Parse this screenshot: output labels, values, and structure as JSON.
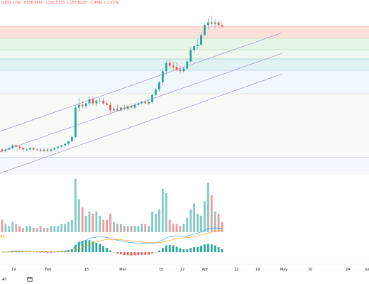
{
  "ohlc": {
    "open": "O156.2742",
    "high": "H158.8400",
    "low": "L155.5735",
    "close": "C155.8226",
    "change": "-2.4541 (-1.55%)",
    "color": "#ef5350"
  },
  "macd_label": "MA",
  "range_tab": "All",
  "colors": {
    "up": "#26a69a",
    "down": "#ef5350",
    "up_volume": "#80cbc4",
    "down_volume": "#ef9a9a",
    "channel": "#9c7cc9",
    "macd_line": "#2196f3",
    "signal_line": "#ff9800"
  },
  "chart_data": {
    "type": "candlestick",
    "x_tick_labels": [
      "19",
      "Feb",
      "15",
      "Mar",
      "15",
      "22",
      "Apr",
      "12",
      "19",
      "May",
      "10",
      "24",
      "Jun"
    ],
    "candles": [
      {
        "o": 68,
        "h": 69,
        "l": 66,
        "c": 67
      },
      {
        "o": 67,
        "h": 69,
        "l": 66,
        "c": 68
      },
      {
        "o": 68,
        "h": 70,
        "l": 67,
        "c": 69
      },
      {
        "o": 69,
        "h": 72,
        "l": 68,
        "c": 71
      },
      {
        "o": 71,
        "h": 72,
        "l": 69,
        "c": 70
      },
      {
        "o": 70,
        "h": 71,
        "l": 68,
        "c": 69
      },
      {
        "o": 69,
        "h": 70,
        "l": 67,
        "c": 68
      },
      {
        "o": 68,
        "h": 69,
        "l": 67,
        "c": 68
      },
      {
        "o": 68,
        "h": 70,
        "l": 67,
        "c": 69
      },
      {
        "o": 69,
        "h": 70,
        "l": 67,
        "c": 68
      },
      {
        "o": 68,
        "h": 69,
        "l": 67,
        "c": 68
      },
      {
        "o": 68,
        "h": 69,
        "l": 66,
        "c": 67
      },
      {
        "o": 67,
        "h": 69,
        "l": 66,
        "c": 68
      },
      {
        "o": 68,
        "h": 69,
        "l": 66,
        "c": 67
      },
      {
        "o": 67,
        "h": 69,
        "l": 66,
        "c": 68
      },
      {
        "o": 68,
        "h": 70,
        "l": 67,
        "c": 69
      },
      {
        "o": 69,
        "h": 71,
        "l": 68,
        "c": 70
      },
      {
        "o": 70,
        "h": 71,
        "l": 69,
        "c": 71
      },
      {
        "o": 71,
        "h": 73,
        "l": 70,
        "c": 72
      },
      {
        "o": 72,
        "h": 74,
        "l": 71,
        "c": 74
      },
      {
        "o": 74,
        "h": 78,
        "l": 73,
        "c": 77
      },
      {
        "o": 77,
        "h": 100,
        "l": 76,
        "c": 98
      },
      {
        "o": 98,
        "h": 105,
        "l": 95,
        "c": 100
      },
      {
        "o": 100,
        "h": 103,
        "l": 97,
        "c": 99
      },
      {
        "o": 99,
        "h": 102,
        "l": 97,
        "c": 101
      },
      {
        "o": 101,
        "h": 106,
        "l": 99,
        "c": 104
      },
      {
        "o": 104,
        "h": 106,
        "l": 100,
        "c": 101
      },
      {
        "o": 101,
        "h": 104,
        "l": 99,
        "c": 103
      },
      {
        "o": 103,
        "h": 105,
        "l": 101,
        "c": 103
      },
      {
        "o": 103,
        "h": 105,
        "l": 100,
        "c": 101
      },
      {
        "o": 101,
        "h": 103,
        "l": 99,
        "c": 100
      },
      {
        "o": 100,
        "h": 102,
        "l": 94,
        "c": 96
      },
      {
        "o": 96,
        "h": 99,
        "l": 94,
        "c": 97
      },
      {
        "o": 97,
        "h": 100,
        "l": 95,
        "c": 96
      },
      {
        "o": 96,
        "h": 99,
        "l": 95,
        "c": 98
      },
      {
        "o": 98,
        "h": 100,
        "l": 96,
        "c": 97
      },
      {
        "o": 97,
        "h": 100,
        "l": 96,
        "c": 99
      },
      {
        "o": 99,
        "h": 101,
        "l": 97,
        "c": 98
      },
      {
        "o": 98,
        "h": 101,
        "l": 97,
        "c": 100
      },
      {
        "o": 100,
        "h": 102,
        "l": 99,
        "c": 101
      },
      {
        "o": 101,
        "h": 103,
        "l": 100,
        "c": 102
      },
      {
        "o": 102,
        "h": 104,
        "l": 101,
        "c": 101
      },
      {
        "o": 101,
        "h": 103,
        "l": 100,
        "c": 102
      },
      {
        "o": 102,
        "h": 108,
        "l": 101,
        "c": 107
      },
      {
        "o": 107,
        "h": 112,
        "l": 106,
        "c": 111
      },
      {
        "o": 111,
        "h": 117,
        "l": 109,
        "c": 116
      },
      {
        "o": 116,
        "h": 126,
        "l": 114,
        "c": 124
      },
      {
        "o": 124,
        "h": 132,
        "l": 122,
        "c": 130
      },
      {
        "o": 130,
        "h": 133,
        "l": 126,
        "c": 128
      },
      {
        "o": 128,
        "h": 131,
        "l": 125,
        "c": 127
      },
      {
        "o": 127,
        "h": 130,
        "l": 124,
        "c": 125
      },
      {
        "o": 125,
        "h": 128,
        "l": 122,
        "c": 124
      },
      {
        "o": 124,
        "h": 127,
        "l": 123,
        "c": 126
      },
      {
        "o": 126,
        "h": 132,
        "l": 125,
        "c": 131
      },
      {
        "o": 131,
        "h": 141,
        "l": 130,
        "c": 139
      },
      {
        "o": 139,
        "h": 143,
        "l": 137,
        "c": 142
      },
      {
        "o": 142,
        "h": 147,
        "l": 140,
        "c": 143
      },
      {
        "o": 143,
        "h": 152,
        "l": 142,
        "c": 150
      },
      {
        "o": 150,
        "h": 158,
        "l": 149,
        "c": 157
      },
      {
        "o": 157,
        "h": 162,
        "l": 154,
        "c": 159
      },
      {
        "o": 159,
        "h": 164,
        "l": 156,
        "c": 158
      },
      {
        "o": 158,
        "h": 161,
        "l": 155,
        "c": 159
      },
      {
        "o": 159,
        "h": 160,
        "l": 156,
        "c": 157
      },
      {
        "o": 157,
        "h": 159,
        "l": 155,
        "c": 156
      }
    ],
    "volume": [
      6,
      4,
      3,
      5,
      4,
      3,
      2,
      3,
      3,
      2,
      2,
      3,
      2,
      2,
      3,
      3,
      3,
      4,
      4,
      5,
      6,
      26,
      16,
      12,
      8,
      10,
      9,
      10,
      8,
      6,
      6,
      9,
      5,
      4,
      4,
      3,
      3,
      3,
      3,
      3,
      4,
      4,
      3,
      10,
      9,
      11,
      21,
      19,
      6,
      4,
      4,
      3,
      4,
      7,
      11,
      14,
      9,
      8,
      15,
      24,
      18,
      10,
      9,
      5
    ],
    "price_range": [
      50,
      175
    ],
    "volume_range": [
      0,
      30
    ],
    "macd_range": [
      -3,
      11
    ]
  }
}
